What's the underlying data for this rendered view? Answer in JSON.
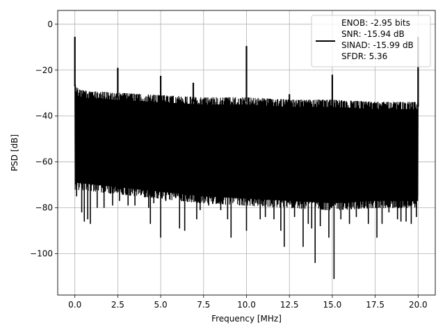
{
  "chart_data": {
    "type": "line",
    "title": "",
    "xlabel": "Frequency [MHz]",
    "ylabel": "PSD [dB]",
    "xlim": [
      -1,
      21
    ],
    "ylim": [
      -118,
      6
    ],
    "xticks": [
      0.0,
      2.5,
      5.0,
      7.5,
      10.0,
      12.5,
      15.0,
      17.5,
      20.0
    ],
    "xtick_labels": [
      "0.0",
      "2.5",
      "5.0",
      "7.5",
      "10.0",
      "12.5",
      "15.0",
      "17.5",
      "20.0"
    ],
    "yticks": [
      0,
      -20,
      -40,
      -60,
      -80,
      -100
    ],
    "ytick_labels": [
      "0",
      "−20",
      "−40",
      "−60",
      "−80",
      "−100"
    ],
    "grid": true,
    "legend_position": "top-right",
    "series": [
      {
        "name": "ENOB: -2.95 bits\nSNR: -15.94 dB\nSINAD: -15.99 dB\nSFDR: 5.36",
        "color": "#000000",
        "noise_band": {
          "x_start": 0.0,
          "x_end": 20.0,
          "upper_envelope": [
            [
              0.0,
              -25
            ],
            [
              0.15,
              -28
            ],
            [
              0.5,
              -29
            ],
            [
              2.5,
              -30
            ],
            [
              5.0,
              -31
            ],
            [
              7.5,
              -32
            ],
            [
              10.0,
              -32
            ],
            [
              12.5,
              -33
            ],
            [
              15.0,
              -33
            ],
            [
              17.5,
              -34
            ],
            [
              20.0,
              -34
            ]
          ],
          "lower_envelope": [
            [
              0.0,
              -72
            ],
            [
              2.5,
              -74
            ],
            [
              5.0,
              -76
            ],
            [
              7.5,
              -78
            ],
            [
              10.0,
              -79
            ],
            [
              12.5,
              -80
            ],
            [
              15.0,
              -81
            ],
            [
              17.5,
              -80
            ],
            [
              20.0,
              -80
            ]
          ]
        },
        "dips": [
          [
            0.1,
            -75
          ],
          [
            0.4,
            -82
          ],
          [
            0.55,
            -86
          ],
          [
            0.75,
            -85
          ],
          [
            0.9,
            -87
          ],
          [
            1.3,
            -80
          ],
          [
            1.7,
            -80
          ],
          [
            2.2,
            -79
          ],
          [
            2.6,
            -77
          ],
          [
            3.1,
            -79
          ],
          [
            3.5,
            -79
          ],
          [
            4.3,
            -80
          ],
          [
            4.6,
            -78
          ],
          [
            4.4,
            -87
          ],
          [
            5.0,
            -93
          ],
          [
            5.3,
            -77
          ],
          [
            6.1,
            -89
          ],
          [
            6.4,
            -90
          ],
          [
            7.1,
            -85
          ],
          [
            7.3,
            -81
          ],
          [
            7.8,
            -79
          ],
          [
            8.5,
            -81
          ],
          [
            8.9,
            -85
          ],
          [
            9.1,
            -93
          ],
          [
            9.8,
            -79
          ],
          [
            10.0,
            -90
          ],
          [
            10.3,
            -75
          ],
          [
            10.8,
            -85
          ],
          [
            11.1,
            -84
          ],
          [
            11.6,
            -85
          ],
          [
            12.0,
            -90
          ],
          [
            12.2,
            -97
          ],
          [
            12.8,
            -84
          ],
          [
            13.3,
            -97
          ],
          [
            13.6,
            -87
          ],
          [
            13.8,
            -89
          ],
          [
            14.0,
            -104
          ],
          [
            14.3,
            -88
          ],
          [
            14.8,
            -93
          ],
          [
            15.1,
            -111
          ],
          [
            15.5,
            -85
          ],
          [
            16.0,
            -87
          ],
          [
            16.4,
            -84
          ],
          [
            17.1,
            -87
          ],
          [
            17.6,
            -93
          ],
          [
            17.9,
            -87
          ],
          [
            18.3,
            -82
          ],
          [
            18.8,
            -85
          ],
          [
            19.0,
            -86
          ],
          [
            19.3,
            -86
          ],
          [
            19.6,
            -87
          ],
          [
            19.9,
            -84
          ]
        ],
        "spikes": [
          [
            0.0,
            -5.5
          ],
          [
            2.5,
            -19
          ],
          [
            5.0,
            -22.5
          ],
          [
            6.9,
            -25.5
          ],
          [
            10.0,
            -9.5
          ],
          [
            12.5,
            -30.5
          ],
          [
            15.0,
            -22
          ],
          [
            20.0,
            -5.5
          ]
        ]
      }
    ]
  }
}
